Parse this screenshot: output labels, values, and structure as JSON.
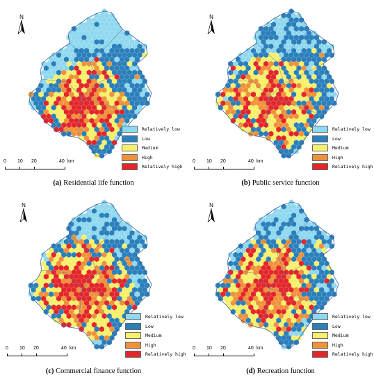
{
  "compass_label": "N",
  "legend": [
    {
      "label": "Relatively low",
      "color": "#8fd8f0"
    },
    {
      "label": "Low",
      "color": "#2b7fbb"
    },
    {
      "label": "Medium",
      "color": "#f6f06a"
    },
    {
      "label": "High",
      "color": "#f0923a"
    },
    {
      "label": "Relatively high",
      "color": "#e3262a"
    }
  ],
  "scale": {
    "ticks": [
      "0",
      "10",
      "20",
      "40"
    ],
    "unit": "km"
  },
  "colors": {
    "relatively_low": "#8fd8f0",
    "low": "#2b7fbb",
    "medium": "#f6f06a",
    "high": "#f0923a",
    "relatively_high": "#e3262a",
    "district_lines": "#4a6fae"
  },
  "panels": [
    {
      "id": "a",
      "letter": "(a)",
      "title": "Residential life function"
    },
    {
      "id": "b",
      "letter": "(b)",
      "title": "Public service function"
    },
    {
      "id": "c",
      "letter": "(c)",
      "title": "Commercial finance function"
    },
    {
      "id": "d",
      "letter": "(d)",
      "title": "Recreation function"
    }
  ]
}
